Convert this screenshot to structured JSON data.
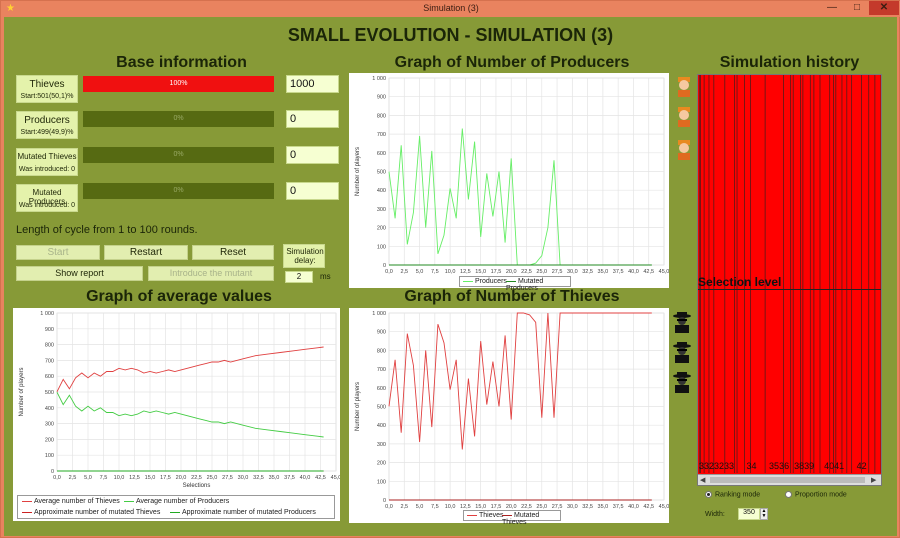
{
  "window": {
    "title": "Simulation (3)",
    "controls": {
      "minimize": "—",
      "maximize": "□",
      "close": "✕"
    }
  },
  "app_title": "SMALL EVOLUTION - SIMULATION (3)",
  "base_info": {
    "title": "Base information",
    "rows": [
      {
        "label": "Thieves",
        "sub": "Start:501(50,1)%",
        "percent_text": "100%",
        "fraction": 1.0,
        "value": "1000"
      },
      {
        "label": "Producers",
        "sub": "Start:499(49,9)%",
        "percent_text": "0%",
        "fraction": 0.0,
        "value": "0"
      },
      {
        "label": "Mutated Thieves",
        "sub": "Was introduced: 0",
        "percent_text": "0%",
        "fraction": 0.0,
        "value": "0"
      },
      {
        "label": "Mutated Producers",
        "sub": "Was introduced: 0",
        "percent_text": "0%",
        "fraction": 0.0,
        "value": "0"
      }
    ],
    "cycle_text": "Length of cycle from 1 to 100 rounds.",
    "buttons": {
      "start": "Start",
      "restart": "Restart",
      "reset": "Reset",
      "show_report": "Show report",
      "introduce": "Introduce the mutant"
    },
    "delay_label": "Simulation delay:",
    "delay_value": "2",
    "delay_unit": "ms"
  },
  "producers_chart": {
    "title": "Graph of Number of Producers",
    "ylabel": "Number of players",
    "xlabel": "Selections",
    "legend": [
      "Producers",
      "Mutated Producers"
    ],
    "colors": {
      "Producers": "#66ee66",
      "Mutated Producers": "#228822"
    }
  },
  "thieves_chart": {
    "title": "Graph of Number of Thieves",
    "ylabel": "Number of players",
    "xlabel": "Selections",
    "legend": [
      "Thieves",
      "Mutated Thieves"
    ],
    "colors": {
      "Thieves": "#e04040",
      "Mutated Thieves": "#aa2020"
    }
  },
  "average_chart": {
    "title": "Graph of average values",
    "ylabel": "Number of players",
    "xlabel": "Selections",
    "legend": [
      "Average number of Thieves",
      "Average number of Producers",
      "Approximate number of mutated Thieves",
      "Approximate number of mutated Producers"
    ],
    "colors": {
      "thieves": "#e04040",
      "producers": "#44cc44",
      "mut_thieves": "#cc2222",
      "mut_producers": "#22aa22"
    }
  },
  "history": {
    "title": "Simulation history",
    "selection_level": "Selection level",
    "bottom_labels": "3323233     34     3536  3839    4041     42",
    "ranking_mode": "Ranking mode",
    "proportion_mode": "Proportion mode",
    "width_label": "Width:",
    "width_value": "350",
    "bar_color": "#ff0000",
    "line_positions_units": [
      1,
      2,
      5,
      9,
      13,
      22,
      30,
      32,
      38,
      43,
      55,
      70,
      76,
      78,
      84,
      86,
      92,
      95,
      100,
      108,
      111,
      113,
      118,
      122,
      126,
      134,
      140,
      145,
      150
    ]
  },
  "icons": {
    "producer": "producer-face-icon",
    "thief": "thief-face-icon"
  },
  "chart_data": [
    {
      "type": "line",
      "title": "Graph of Number of Producers",
      "xlabel": "Selections",
      "ylabel": "Number of players",
      "xlim": [
        0,
        45
      ],
      "ylim": [
        0,
        1000
      ],
      "xticks": [
        "0,0",
        "2,5",
        "5,0",
        "7,5",
        "10,0",
        "12,5",
        "15,0",
        "17,5",
        "20,0",
        "22,5",
        "25,0",
        "27,5",
        "30,0",
        "32,5",
        "35,0",
        "37,5",
        "40,0",
        "42,5",
        "45,0"
      ],
      "yticks": [
        "0",
        "100",
        "200",
        "300",
        "400",
        "500",
        "600",
        "700",
        "800",
        "900",
        "1 000"
      ],
      "series": [
        {
          "name": "Producers",
          "x": [
            0,
            1,
            2,
            3,
            4,
            5,
            6,
            7,
            8,
            9,
            10,
            11,
            12,
            13,
            14,
            15,
            16,
            17,
            18,
            19,
            20,
            21,
            22,
            23,
            24,
            25,
            26,
            27,
            28,
            29,
            30,
            31,
            32,
            33,
            34,
            35,
            36,
            37,
            38,
            39,
            40,
            41,
            42,
            43
          ],
          "y": [
            499,
            250,
            640,
            110,
            280,
            690,
            200,
            610,
            60,
            160,
            410,
            250,
            730,
            350,
            660,
            150,
            490,
            260,
            500,
            120,
            570,
            0,
            0,
            0,
            10,
            50,
            200,
            560,
            0,
            0,
            0,
            0,
            0,
            0,
            0,
            0,
            0,
            0,
            0,
            0,
            0,
            0,
            0,
            0
          ]
        },
        {
          "name": "Mutated Producers",
          "x": [
            0,
            43
          ],
          "y": [
            0,
            0
          ]
        }
      ]
    },
    {
      "type": "line",
      "title": "Graph of Number of Thieves",
      "xlabel": "Selections",
      "ylabel": "Number of players",
      "xlim": [
        0,
        45
      ],
      "ylim": [
        0,
        1000
      ],
      "xticks": [
        "0,0",
        "2,5",
        "5,0",
        "7,5",
        "10,0",
        "12,5",
        "15,0",
        "17,5",
        "20,0",
        "22,5",
        "25,0",
        "27,5",
        "30,0",
        "32,5",
        "35,0",
        "37,5",
        "40,0",
        "42,5",
        "45,0"
      ],
      "yticks": [
        "0",
        "100",
        "200",
        "300",
        "400",
        "500",
        "600",
        "700",
        "800",
        "900",
        "1 000"
      ],
      "series": [
        {
          "name": "Thieves",
          "x": [
            0,
            1,
            2,
            3,
            4,
            5,
            6,
            7,
            8,
            9,
            10,
            11,
            12,
            13,
            14,
            15,
            16,
            17,
            18,
            19,
            20,
            21,
            22,
            23,
            24,
            25,
            26,
            27,
            28,
            29,
            30,
            31,
            32,
            33,
            34,
            35,
            36,
            37,
            38,
            39,
            40,
            41,
            42,
            43
          ],
          "y": [
            501,
            750,
            360,
            890,
            720,
            310,
            800,
            390,
            940,
            840,
            590,
            750,
            270,
            650,
            340,
            850,
            510,
            740,
            500,
            880,
            430,
            1000,
            1000,
            990,
            950,
            440,
            1000,
            440,
            1000,
            1000,
            1000,
            1000,
            1000,
            1000,
            1000,
            1000,
            1000,
            1000,
            1000,
            1000,
            1000,
            1000,
            1000,
            1000
          ]
        },
        {
          "name": "Mutated Thieves",
          "x": [
            0,
            43
          ],
          "y": [
            0,
            0
          ]
        }
      ]
    },
    {
      "type": "line",
      "title": "Graph of average values",
      "xlabel": "Selections",
      "ylabel": "Number of players",
      "xlim": [
        0,
        45
      ],
      "ylim": [
        0,
        1000
      ],
      "xticks": [
        "0,0",
        "2,5",
        "5,0",
        "7,5",
        "10,0",
        "12,5",
        "15,0",
        "17,5",
        "20,0",
        "22,5",
        "25,0",
        "27,5",
        "30,0",
        "32,5",
        "35,0",
        "37,5",
        "40,0",
        "42,5",
        "45,0"
      ],
      "yticks": [
        "0",
        "100",
        "200",
        "300",
        "400",
        "500",
        "600",
        "700",
        "800",
        "900",
        "1 000"
      ],
      "series": [
        {
          "name": "Average number of Thieves",
          "x": [
            0,
            1,
            2,
            3,
            4,
            5,
            6,
            7,
            8,
            9,
            10,
            11,
            12,
            13,
            14,
            15,
            16,
            17,
            18,
            19,
            20,
            21,
            22,
            23,
            24,
            25,
            26,
            27,
            28,
            30,
            32,
            34,
            36,
            38,
            40,
            42,
            43
          ],
          "y": [
            501,
            580,
            520,
            590,
            620,
            590,
            620,
            600,
            630,
            630,
            650,
            640,
            650,
            640,
            620,
            630,
            620,
            630,
            640,
            630,
            640,
            650,
            660,
            670,
            680,
            690,
            690,
            700,
            690,
            710,
            730,
            740,
            750,
            760,
            770,
            780,
            785
          ]
        },
        {
          "name": "Average number of Producers",
          "x": [
            0,
            1,
            2,
            3,
            4,
            5,
            6,
            7,
            8,
            9,
            10,
            11,
            12,
            13,
            14,
            15,
            16,
            17,
            18,
            19,
            20,
            21,
            22,
            23,
            24,
            25,
            26,
            27,
            28,
            30,
            32,
            34,
            36,
            38,
            40,
            42,
            43
          ],
          "y": [
            499,
            420,
            480,
            410,
            380,
            410,
            380,
            400,
            370,
            370,
            350,
            360,
            350,
            360,
            380,
            370,
            380,
            370,
            360,
            370,
            360,
            350,
            340,
            330,
            320,
            310,
            310,
            300,
            310,
            290,
            270,
            260,
            250,
            240,
            230,
            220,
            215
          ]
        },
        {
          "name": "Approximate number of mutated Thieves",
          "x": [
            0,
            43
          ],
          "y": [
            0,
            0
          ]
        },
        {
          "name": "Approximate number of mutated Producers",
          "x": [
            0,
            43
          ],
          "y": [
            0,
            0
          ]
        }
      ]
    }
  ]
}
